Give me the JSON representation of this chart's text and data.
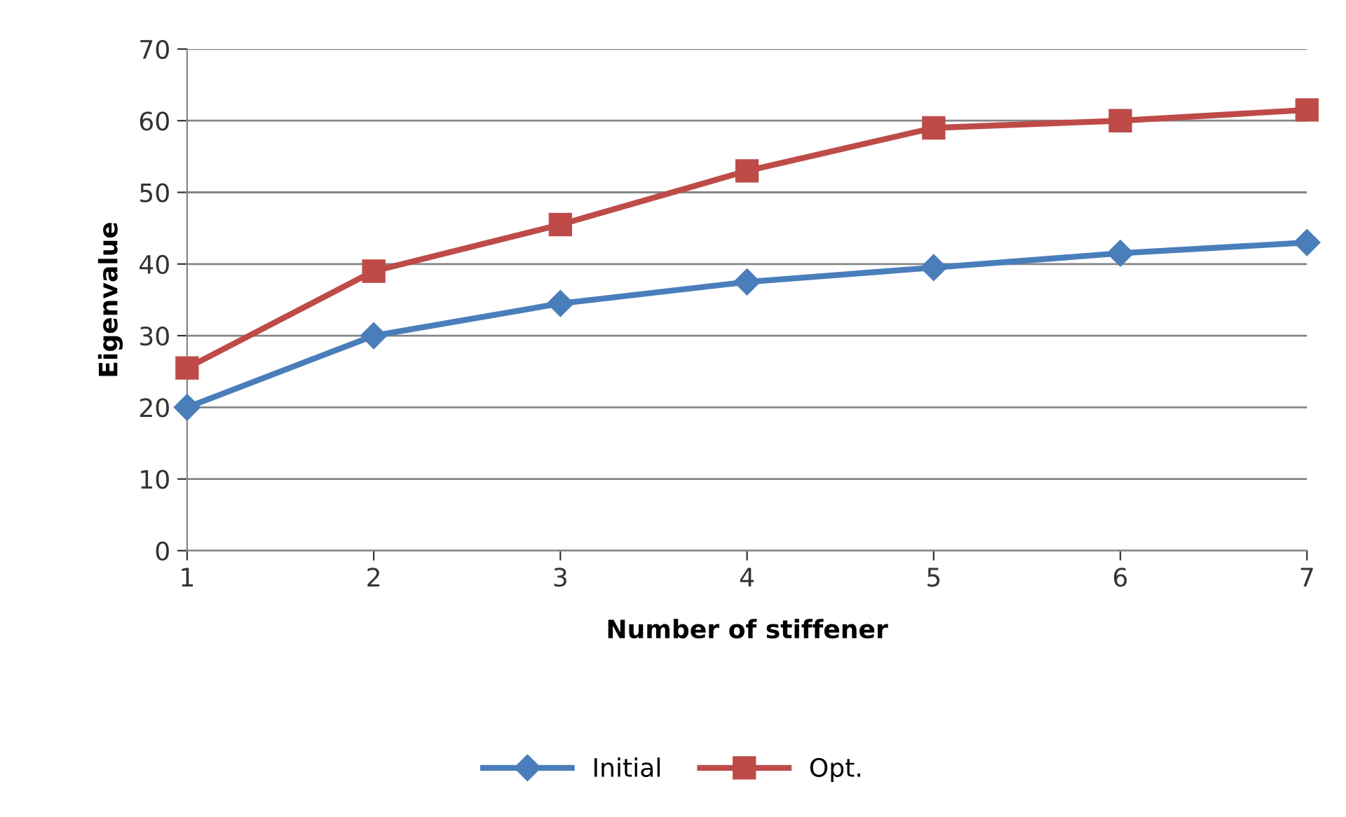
{
  "chart_data": {
    "type": "line",
    "xlabel": "Number of stiffener",
    "ylabel": "Eigenvalue",
    "x": [
      1,
      2,
      3,
      4,
      5,
      6,
      7
    ],
    "series": [
      {
        "name": "Initial",
        "color": "#4a7ebb",
        "marker": "diamond",
        "values": [
          20,
          30,
          34.5,
          37.5,
          39.5,
          41.5,
          43
        ]
      },
      {
        "name": "Opt.",
        "color": "#be4b48",
        "marker": "square",
        "values": [
          25.5,
          39,
          45.5,
          53,
          59,
          60,
          61.5
        ]
      }
    ],
    "xlim": [
      1,
      7
    ],
    "xticks": [
      1,
      2,
      3,
      4,
      5,
      6,
      7
    ],
    "ylim": [
      0,
      70
    ],
    "yticks": [
      0,
      10,
      20,
      30,
      40,
      50,
      60,
      70
    ],
    "grid": "y",
    "legend": "bottom",
    "line_style": "solid"
  }
}
